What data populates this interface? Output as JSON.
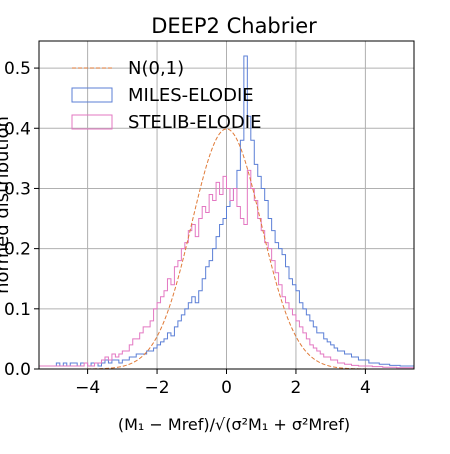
{
  "chart_data": {
    "type": "histogram",
    "title": "DEEP2 Chabrier",
    "xlabel": "(M_1 - M_ref) / sqrt(sigma_M1^2 + sigma_Mref^2)",
    "ylabel": "normed distribution",
    "xlim": [
      -5.4,
      5.4
    ],
    "ylim": [
      0,
      0.545
    ],
    "xticks": [
      -4,
      -2,
      0,
      2,
      4
    ],
    "yticks": [
      0.0,
      0.1,
      0.2,
      0.3,
      0.4,
      0.5
    ],
    "grid": true,
    "legend_position": "top-left",
    "bins": {
      "start": -5.4,
      "width": 0.1
    },
    "series": [
      {
        "name": "N(0,1)",
        "kind": "curve",
        "function": "standard normal pdf",
        "color": "#e07b39",
        "style": "dashed"
      },
      {
        "name": "MILES-ELODIE",
        "kind": "histogram",
        "color": "#5b7fd6",
        "values": [
          0.005,
          0.005,
          0.005,
          0.005,
          0.005,
          0.01,
          0.005,
          0.01,
          0.005,
          0.01,
          0.01,
          0.005,
          0.01,
          0.01,
          0.005,
          0.01,
          0.01,
          0.005,
          0.01,
          0.015,
          0.01,
          0.015,
          0.015,
          0.01,
          0.015,
          0.015,
          0.02,
          0.02,
          0.025,
          0.025,
          0.025,
          0.03,
          0.03,
          0.035,
          0.04,
          0.045,
          0.05,
          0.06,
          0.055,
          0.07,
          0.08,
          0.09,
          0.1,
          0.11,
          0.12,
          0.11,
          0.13,
          0.15,
          0.17,
          0.18,
          0.2,
          0.22,
          0.24,
          0.25,
          0.27,
          0.28,
          0.3,
          0.33,
          0.38,
          0.52,
          0.42,
          0.38,
          0.34,
          0.32,
          0.3,
          0.28,
          0.25,
          0.23,
          0.21,
          0.2,
          0.19,
          0.17,
          0.15,
          0.14,
          0.13,
          0.11,
          0.1,
          0.09,
          0.08,
          0.07,
          0.06,
          0.06,
          0.05,
          0.045,
          0.04,
          0.035,
          0.03,
          0.03,
          0.025,
          0.025,
          0.02,
          0.02,
          0.015,
          0.015,
          0.015,
          0.01,
          0.01,
          0.01,
          0.008,
          0.008,
          0.008,
          0.006,
          0.006,
          0.006,
          0.005,
          0.005,
          0.005,
          0.005
        ]
      },
      {
        "name": "STELIB-ELODIE",
        "kind": "histogram",
        "color": "#e377c2",
        "values": [
          0.005,
          0.005,
          0.005,
          0.005,
          0.005,
          0.005,
          0.005,
          0.005,
          0.005,
          0.005,
          0.005,
          0.005,
          0.005,
          0.01,
          0.005,
          0.005,
          0.01,
          0.01,
          0.015,
          0.02,
          0.015,
          0.025,
          0.02,
          0.025,
          0.03,
          0.03,
          0.04,
          0.05,
          0.05,
          0.06,
          0.07,
          0.07,
          0.08,
          0.1,
          0.11,
          0.12,
          0.13,
          0.15,
          0.14,
          0.17,
          0.18,
          0.2,
          0.21,
          0.23,
          0.24,
          0.22,
          0.25,
          0.27,
          0.26,
          0.29,
          0.28,
          0.31,
          0.29,
          0.32,
          0.3,
          0.28,
          0.3,
          0.27,
          0.25,
          0.24,
          0.33,
          0.3,
          0.28,
          0.25,
          0.23,
          0.21,
          0.2,
          0.18,
          0.16,
          0.14,
          0.12,
          0.11,
          0.1,
          0.09,
          0.08,
          0.07,
          0.06,
          0.05,
          0.04,
          0.035,
          0.03,
          0.025,
          0.02,
          0.02,
          0.015,
          0.015,
          0.01,
          0.01,
          0.008,
          0.008,
          0.006,
          0.006,
          0.005,
          0.005,
          0.005,
          0.005,
          0.004,
          0.004,
          0.004,
          0.003,
          0.003,
          0.003,
          0.003,
          0.002,
          0.002,
          0.002,
          0.002,
          0.002
        ]
      }
    ]
  }
}
